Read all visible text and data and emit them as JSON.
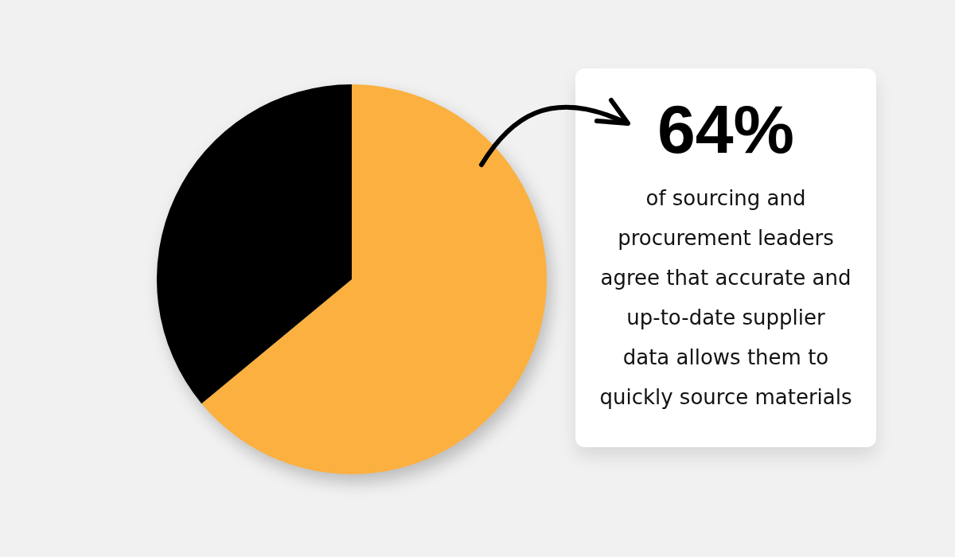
{
  "chart_data": {
    "type": "pie",
    "categories": [
      null,
      null
    ],
    "values": [
      64,
      36
    ],
    "colors": [
      "#fbb03f",
      "#000000"
    ],
    "annotations": [
      "64%",
      "of sourcing and\nprocurement leaders\nagree that accurate and\nup-to-date supplier\ndata allows them to\nquickly source materials"
    ]
  }
}
